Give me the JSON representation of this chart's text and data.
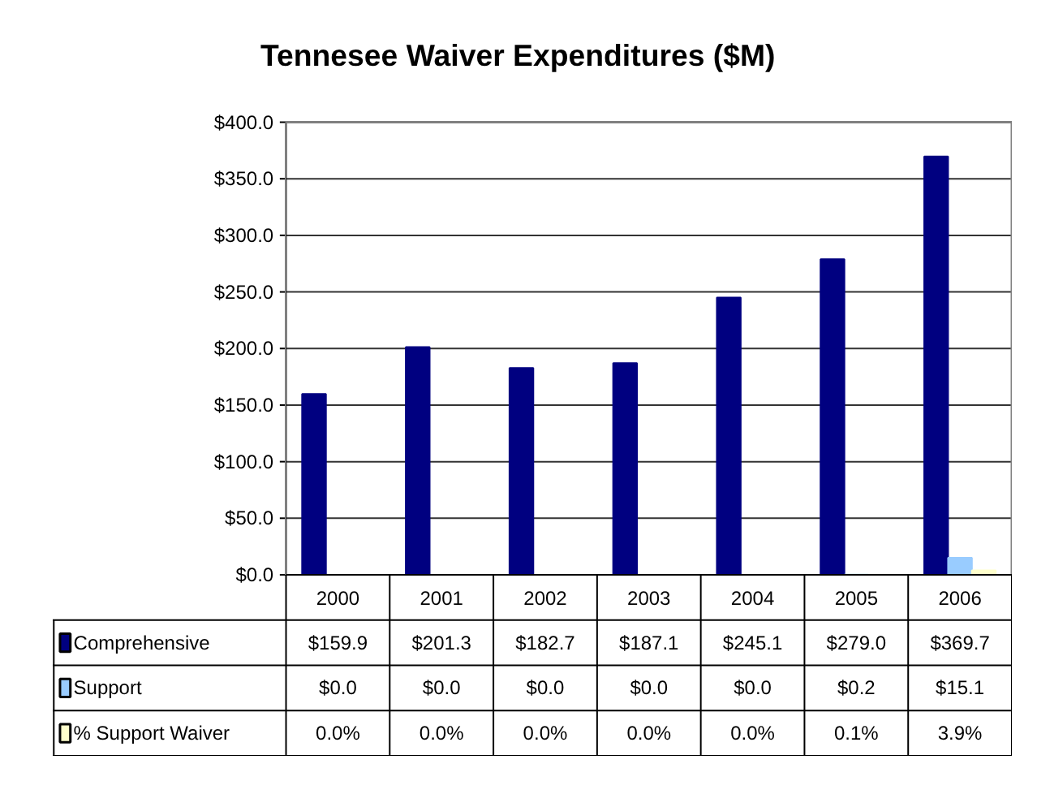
{
  "chart_data": {
    "type": "bar",
    "title": "Tennesee Waiver Expenditures ($M)",
    "categories": [
      "2000",
      "2001",
      "2002",
      "2003",
      "2004",
      "2005",
      "2006"
    ],
    "series": [
      {
        "name": "Comprehensive",
        "color": "#000080",
        "values": [
          159.9,
          201.3,
          182.7,
          187.1,
          245.1,
          279.0,
          369.7
        ],
        "value_labels": [
          "$159.9",
          "$201.3",
          "$182.7",
          "$187.1",
          "$245.1",
          "$279.0",
          "$369.7"
        ]
      },
      {
        "name": "Support",
        "color": "#99ccff",
        "values": [
          0.0,
          0.0,
          0.0,
          0.0,
          0.0,
          0.2,
          15.1
        ],
        "value_labels": [
          "$0.0",
          "$0.0",
          "$0.0",
          "$0.0",
          "$0.0",
          "$0.2",
          "$15.1"
        ]
      },
      {
        "name": "% Support Waiver",
        "color": "#ffffcc",
        "values": [
          0.0,
          0.0,
          0.0,
          0.0,
          0.0,
          0.1,
          3.9
        ],
        "value_labels": [
          "0.0%",
          "0.0%",
          "0.0%",
          "0.0%",
          "0.0%",
          "0.1%",
          "3.9%"
        ]
      }
    ],
    "ylim": [
      0,
      400
    ],
    "yticks": [
      {
        "value": 0,
        "label": "$0.0"
      },
      {
        "value": 50,
        "label": "$50.0"
      },
      {
        "value": 100,
        "label": "$100.0"
      },
      {
        "value": 150,
        "label": "$150.0"
      },
      {
        "value": 200,
        "label": "$200.0"
      },
      {
        "value": 250,
        "label": "$250.0"
      },
      {
        "value": 300,
        "label": "$300.0"
      },
      {
        "value": 350,
        "label": "$350.0"
      },
      {
        "value": 400,
        "label": "$400.0"
      }
    ],
    "grid": "y",
    "legend": "bottom"
  }
}
